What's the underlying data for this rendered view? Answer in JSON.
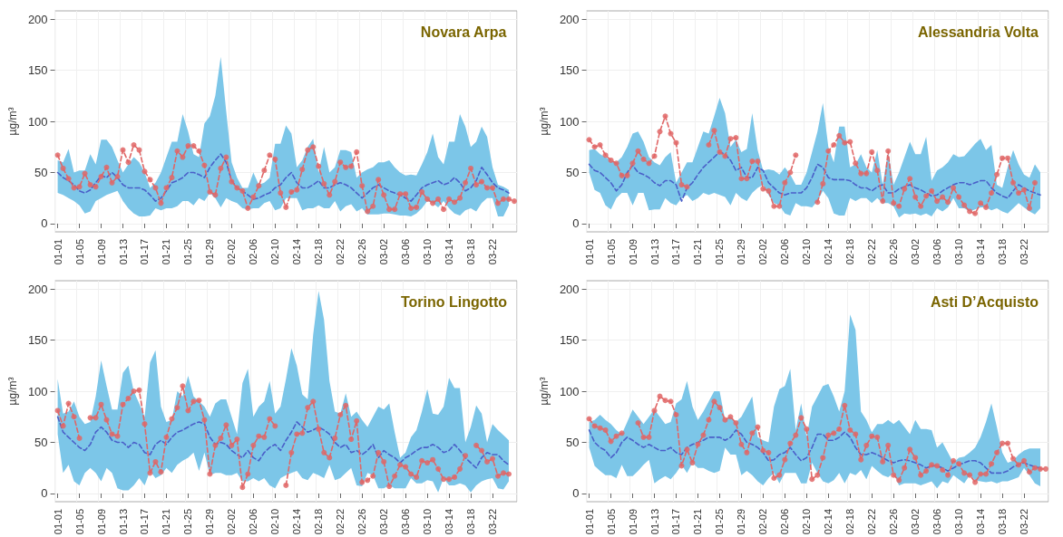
{
  "chart_data": [
    {
      "type": "line",
      "title": "Novara Arpa",
      "ylabel": "µg/m³",
      "ylim": [
        -8,
        208
      ],
      "yticks": [
        0,
        50,
        100,
        150,
        200
      ],
      "grid": true,
      "categories": [
        "01-01",
        null,
        null,
        null,
        "01-05",
        null,
        null,
        null,
        "01-09",
        null,
        null,
        null,
        "01-13",
        null,
        null,
        null,
        "01-17",
        null,
        null,
        null,
        "01-21",
        null,
        null,
        null,
        "01-25",
        null,
        null,
        null,
        "01-29",
        null,
        null,
        null,
        "02-02",
        null,
        null,
        null,
        "02-06",
        null,
        null,
        null,
        "02-10",
        null,
        null,
        null,
        "02-14",
        null,
        null,
        null,
        "02-18",
        null,
        null,
        null,
        "02-22",
        null,
        null,
        null,
        "02-26",
        null,
        null,
        null,
        "03-02",
        null,
        null,
        null,
        "03-06",
        null,
        null,
        null,
        "03-10",
        null,
        null,
        null,
        "03-14",
        null,
        null,
        null,
        "03-18",
        null,
        null,
        null,
        "03-22",
        null,
        null,
        null,
        null
      ],
      "series": [
        {
          "type": "line",
          "color": "#4a5fc8",
          "line_style": "dashed",
          "marker": "none",
          "values": [
            50,
            45,
            42,
            38,
            32,
            30,
            33,
            40,
            47,
            45,
            50,
            45,
            38,
            35,
            35,
            35,
            33,
            28,
            22,
            25,
            32,
            40,
            42,
            45,
            50,
            50,
            48,
            45,
            55,
            62,
            68,
            60,
            42,
            35,
            32,
            28,
            24,
            25,
            28,
            30,
            35,
            38,
            45,
            50,
            40,
            35,
            35,
            38,
            42,
            35,
            35,
            38,
            40,
            38,
            35,
            30,
            25,
            30,
            35,
            38,
            35,
            32,
            30,
            28,
            25,
            22,
            28,
            35,
            38,
            40,
            42,
            38,
            40,
            45,
            40,
            32,
            35,
            42,
            55,
            48,
            40,
            35,
            33,
            30,
            null
          ],
          "lower": [
            30,
            28,
            25,
            22,
            18,
            10,
            12,
            22,
            25,
            28,
            30,
            32,
            22,
            15,
            10,
            7,
            7,
            8,
            15,
            13,
            15,
            15,
            17,
            22,
            22,
            18,
            25,
            22,
            30,
            25,
            16,
            25,
            22,
            20,
            15,
            14,
            15,
            15,
            20,
            22,
            13,
            15,
            25,
            25,
            25,
            13,
            15,
            15,
            18,
            15,
            15,
            22,
            12,
            17,
            19,
            12,
            15,
            9,
            9,
            9,
            10,
            10,
            9,
            8,
            8,
            7,
            10,
            15,
            22,
            20,
            16,
            22,
            15,
            10,
            8,
            13,
            15,
            12,
            20,
            25,
            25,
            7,
            7,
            18,
            null
          ],
          "upper": [
            62,
            60,
            73,
            50,
            52,
            52,
            68,
            58,
            82,
            82,
            75,
            62,
            50,
            58,
            65,
            60,
            50,
            35,
            40,
            50,
            65,
            80,
            80,
            107,
            90,
            68,
            65,
            98,
            105,
            125,
            163,
            110,
            60,
            45,
            35,
            35,
            50,
            38,
            40,
            45,
            78,
            78,
            96,
            88,
            55,
            62,
            75,
            83,
            50,
            75,
            50,
            55,
            72,
            72,
            70,
            45,
            50,
            53,
            55,
            60,
            60,
            62,
            55,
            50,
            47,
            48,
            47,
            58,
            70,
            88,
            65,
            58,
            80,
            80,
            107,
            95,
            75,
            80,
            95,
            85,
            55,
            38,
            36,
            33,
            null
          ]
        },
        {
          "type": "line",
          "color": "#e06666",
          "line_style": "dashed",
          "marker": "circle",
          "values": [
            67,
            54,
            44,
            35,
            36,
            49,
            38,
            36,
            46,
            55,
            40,
            46,
            72,
            60,
            77,
            72,
            51,
            43,
            35,
            20,
            35,
            45,
            71,
            65,
            76,
            76,
            71,
            57,
            31,
            28,
            54,
            65,
            41,
            35,
            32,
            15,
            26,
            37,
            52,
            67,
            63,
            30,
            16,
            31,
            33,
            53,
            72,
            75,
            56,
            39,
            28,
            41,
            60,
            55,
            56,
            70,
            37,
            12,
            17,
            43,
            28,
            14,
            14,
            29,
            29,
            15,
            16,
            31,
            24,
            20,
            24,
            14,
            24,
            21,
            25,
            40,
            54,
            38,
            41,
            35,
            35,
            20,
            24,
            24,
            22
          ]
        }
      ]
    },
    {
      "type": "line",
      "title": "Alessandria Volta",
      "ylabel": "µg/m³",
      "ylim": [
        -8,
        208
      ],
      "yticks": [
        0,
        50,
        100,
        150,
        200
      ],
      "grid": true,
      "categories": [
        "01-01",
        null,
        null,
        null,
        "01-05",
        null,
        null,
        null,
        "01-09",
        null,
        null,
        null,
        "01-13",
        null,
        null,
        null,
        "01-17",
        null,
        null,
        null,
        "01-21",
        null,
        null,
        null,
        "01-25",
        null,
        null,
        null,
        "01-29",
        null,
        null,
        null,
        "02-02",
        null,
        null,
        null,
        "02-06",
        null,
        null,
        null,
        "02-10",
        null,
        null,
        null,
        "02-14",
        null,
        null,
        null,
        "02-18",
        null,
        null,
        null,
        "02-22",
        null,
        null,
        null,
        "02-26",
        null,
        null,
        null,
        "03-02",
        null,
        null,
        null,
        "03-06",
        null,
        null,
        null,
        "03-10",
        null,
        null,
        null,
        "03-14",
        null,
        null,
        null,
        "03-18",
        null,
        null,
        null,
        "03-22",
        null,
        null,
        null,
        null
      ],
      "series": [
        {
          "type": "line",
          "color": "#4a5fc8",
          "line_style": "dashed",
          "marker": "none",
          "values": [
            58,
            52,
            50,
            45,
            40,
            32,
            38,
            50,
            57,
            50,
            48,
            45,
            40,
            37,
            42,
            42,
            38,
            22,
            35,
            40,
            48,
            55,
            60,
            65,
            70,
            68,
            62,
            52,
            55,
            45,
            45,
            55,
            52,
            40,
            35,
            30,
            28,
            30,
            30,
            30,
            35,
            45,
            58,
            55,
            45,
            43,
            43,
            43,
            42,
            38,
            35,
            35,
            32,
            36,
            38,
            30,
            30,
            34,
            36,
            38,
            35,
            33,
            30,
            27,
            28,
            32,
            35,
            38,
            40,
            40,
            38,
            40,
            42,
            42,
            35,
            30,
            27,
            25,
            32,
            38,
            35,
            32,
            30,
            28,
            null
          ],
          "lower": [
            50,
            33,
            30,
            18,
            14,
            25,
            30,
            30,
            18,
            30,
            30,
            13,
            14,
            14,
            25,
            20,
            18,
            25,
            28,
            22,
            25,
            30,
            28,
            30,
            28,
            26,
            18,
            30,
            25,
            22,
            30,
            35,
            38,
            28,
            20,
            18,
            10,
            8,
            20,
            17,
            17,
            16,
            22,
            32,
            25,
            10,
            8,
            8,
            25,
            22,
            25,
            25,
            20,
            25,
            20,
            20,
            17,
            6,
            10,
            9,
            10,
            8,
            10,
            7,
            15,
            12,
            16,
            25,
            15,
            15,
            12,
            14,
            16,
            16,
            13,
            15,
            12,
            10,
            15,
            20,
            16,
            12,
            9,
            15,
            null
          ],
          "upper": [
            72,
            73,
            68,
            65,
            62,
            60,
            65,
            75,
            88,
            90,
            80,
            65,
            60,
            57,
            65,
            70,
            40,
            50,
            60,
            60,
            75,
            90,
            88,
            105,
            123,
            108,
            75,
            82,
            70,
            73,
            108,
            72,
            52,
            53,
            52,
            48,
            55,
            48,
            38,
            38,
            50,
            70,
            90,
            118,
            75,
            60,
            95,
            95,
            55,
            58,
            68,
            55,
            50,
            72,
            38,
            70,
            38,
            50,
            65,
            80,
            68,
            68,
            85,
            42,
            52,
            55,
            60,
            68,
            65,
            66,
            72,
            78,
            83,
            72,
            77,
            38,
            35,
            55,
            72,
            58,
            48,
            45,
            58,
            50,
            null
          ]
        },
        {
          "type": "line",
          "color": "#e06666",
          "line_style": "dashed",
          "marker": "circle",
          "values": [
            82,
            75,
            77,
            67,
            62,
            59,
            47,
            47,
            59,
            71,
            63,
            59,
            66,
            90,
            105,
            88,
            79,
            38,
            36,
            null,
            null,
            null,
            77,
            91,
            70,
            66,
            83,
            84,
            44,
            44,
            61,
            61,
            34,
            32,
            17,
            17,
            40,
            50,
            67,
            null,
            null,
            null,
            21,
            39,
            71,
            77,
            86,
            79,
            80,
            59,
            49,
            49,
            70,
            52,
            22,
            71,
            20,
            17,
            34,
            44,
            26,
            17,
            27,
            32,
            22,
            26,
            21,
            35,
            26,
            18,
            12,
            10,
            20,
            16,
            30,
            48,
            64,
            64,
            40,
            30,
            33,
            15,
            40,
            null,
            null
          ]
        }
      ]
    },
    {
      "type": "line",
      "title": "Torino Lingotto",
      "ylabel": "µg/m³",
      "ylim": [
        -8,
        208
      ],
      "yticks": [
        0,
        50,
        100,
        150,
        200
      ],
      "grid": true,
      "categories": [
        "01-01",
        null,
        null,
        null,
        "01-05",
        null,
        null,
        null,
        "01-09",
        null,
        null,
        null,
        "01-13",
        null,
        null,
        null,
        "01-17",
        null,
        null,
        null,
        "01-21",
        null,
        null,
        null,
        "01-25",
        null,
        null,
        null,
        "01-29",
        null,
        null,
        null,
        "02-02",
        null,
        null,
        null,
        "02-06",
        null,
        null,
        null,
        "02-10",
        null,
        null,
        null,
        "02-14",
        null,
        null,
        null,
        "02-18",
        null,
        null,
        null,
        "02-22",
        null,
        null,
        null,
        "02-26",
        null,
        null,
        null,
        "03-02",
        null,
        null,
        null,
        "03-06",
        null,
        null,
        null,
        "03-10",
        null,
        null,
        null,
        "03-14",
        null,
        null,
        null,
        "03-18",
        null,
        null,
        null,
        "03-22",
        null,
        null,
        null,
        null
      ],
      "series": [
        {
          "type": "line",
          "color": "#4a5fc8",
          "line_style": "dashed",
          "marker": "none",
          "values": [
            75,
            60,
            55,
            50,
            45,
            42,
            48,
            60,
            65,
            60,
            52,
            50,
            50,
            45,
            50,
            48,
            40,
            38,
            48,
            52,
            48,
            55,
            60,
            62,
            65,
            68,
            70,
            68,
            55,
            48,
            50,
            48,
            42,
            38,
            35,
            42,
            35,
            32,
            40,
            45,
            48,
            42,
            52,
            60,
            70,
            65,
            60,
            62,
            65,
            62,
            58,
            50,
            45,
            48,
            40,
            42,
            38,
            42,
            48,
            35,
            42,
            38,
            35,
            30,
            35,
            38,
            42,
            45,
            45,
            48,
            45,
            40,
            42,
            48,
            42,
            35,
            30,
            25,
            35,
            40,
            38,
            38,
            32,
            28,
            null
          ],
          "lower": [
            58,
            20,
            28,
            12,
            8,
            20,
            25,
            20,
            12,
            25,
            20,
            5,
            3,
            3,
            8,
            15,
            8,
            22,
            15,
            18,
            25,
            20,
            28,
            32,
            35,
            40,
            22,
            40,
            18,
            20,
            20,
            18,
            18,
            20,
            12,
            12,
            15,
            12,
            15,
            8,
            5,
            15,
            18,
            20,
            22,
            15,
            13,
            20,
            18,
            15,
            28,
            13,
            15,
            20,
            25,
            8,
            7,
            20,
            18,
            5,
            5,
            8,
            5,
            5,
            5,
            15,
            10,
            10,
            13,
            12,
            1,
            15,
            8,
            8,
            10,
            8,
            1,
            8,
            12,
            14,
            15,
            5,
            4,
            12,
            null
          ],
          "upper": [
            112,
            78,
            80,
            90,
            75,
            68,
            70,
            95,
            130,
            105,
            82,
            82,
            118,
            125,
            100,
            88,
            75,
            128,
            140,
            85,
            70,
            72,
            100,
            95,
            115,
            95,
            90,
            85,
            75,
            88,
            92,
            92,
            75,
            58,
            108,
            122,
            75,
            85,
            90,
            110,
            78,
            85,
            112,
            142,
            125,
            97,
            92,
            155,
            198,
            170,
            110,
            80,
            78,
            98,
            75,
            80,
            72,
            65,
            75,
            85,
            82,
            88,
            60,
            35,
            40,
            55,
            62,
            80,
            102,
            78,
            77,
            85,
            113,
            103,
            103,
            50,
            65,
            86,
            78,
            50,
            68,
            62,
            57,
            52,
            null
          ]
        },
        {
          "type": "line",
          "color": "#e06666",
          "line_style": "dashed",
          "marker": "circle",
          "values": [
            81,
            66,
            88,
            75,
            54,
            null,
            74,
            74,
            87,
            72,
            58,
            56,
            87,
            93,
            100,
            101,
            68,
            20,
            31,
            21,
            55,
            73,
            84,
            105,
            81,
            90,
            91,
            72,
            19,
            47,
            54,
            67,
            47,
            53,
            6,
            19,
            47,
            56,
            55,
            73,
            66,
            null,
            8,
            40,
            58,
            59,
            84,
            90,
            63,
            40,
            35,
            54,
            77,
            86,
            53,
            71,
            11,
            13,
            17,
            40,
            31,
            7,
            17,
            28,
            26,
            19,
            16,
            32,
            30,
            33,
            24,
            14,
            14,
            16,
            24,
            37,
            null,
            47,
            42,
            31,
            34,
            17,
            20,
            19,
            null
          ]
        }
      ]
    },
    {
      "type": "line",
      "title": "Asti D’Acquisto",
      "ylabel": "µg/m³",
      "ylim": [
        -8,
        208
      ],
      "yticks": [
        0,
        50,
        100,
        150,
        200
      ],
      "grid": true,
      "categories": [
        "01-01",
        null,
        null,
        null,
        "01-05",
        null,
        null,
        null,
        "01-09",
        null,
        null,
        null,
        "01-13",
        null,
        null,
        null,
        "01-17",
        null,
        null,
        null,
        "01-21",
        null,
        null,
        null,
        "01-25",
        null,
        null,
        null,
        "01-29",
        null,
        null,
        null,
        "02-02",
        null,
        null,
        null,
        "02-06",
        null,
        null,
        null,
        "02-10",
        null,
        null,
        null,
        "02-14",
        null,
        null,
        null,
        "02-18",
        null,
        null,
        null,
        "02-22",
        null,
        null,
        null,
        "02-26",
        null,
        null,
        null,
        "03-02",
        null,
        null,
        null,
        "03-06",
        null,
        null,
        null,
        "03-10",
        null,
        null,
        null,
        "03-14",
        null,
        null,
        null,
        "03-18",
        null,
        null,
        null,
        "03-22",
        null,
        null,
        null,
        null
      ],
      "series": [
        {
          "type": "line",
          "color": "#4a5fc8",
          "line_style": "dashed",
          "marker": "none",
          "values": [
            62,
            50,
            45,
            42,
            35,
            40,
            50,
            55,
            52,
            48,
            45,
            48,
            45,
            42,
            42,
            45,
            40,
            38,
            45,
            48,
            50,
            52,
            55,
            55,
            55,
            52,
            55,
            62,
            58,
            50,
            48,
            45,
            40,
            32,
            33,
            38,
            40,
            45,
            38,
            32,
            35,
            45,
            58,
            58,
            52,
            52,
            55,
            60,
            55,
            45,
            38,
            38,
            40,
            38,
            35,
            32,
            30,
            32,
            33,
            32,
            30,
            28,
            25,
            27,
            27,
            25,
            22,
            25,
            28,
            30,
            32,
            32,
            30,
            25,
            20,
            20,
            20,
            22,
            26,
            28,
            30,
            28,
            26,
            25,
            null
          ],
          "lower": [
            45,
            27,
            22,
            18,
            18,
            15,
            28,
            17,
            17,
            22,
            28,
            33,
            10,
            14,
            17,
            14,
            20,
            28,
            20,
            30,
            25,
            25,
            22,
            20,
            22,
            45,
            38,
            38,
            18,
            22,
            18,
            12,
            8,
            15,
            20,
            10,
            20,
            20,
            20,
            10,
            10,
            30,
            20,
            12,
            10,
            13,
            20,
            10,
            20,
            18,
            23,
            14,
            27,
            22,
            18,
            16,
            20,
            8,
            10,
            10,
            10,
            8,
            10,
            12,
            5,
            12,
            10,
            18,
            14,
            10,
            18,
            13,
            12,
            11,
            12,
            10,
            12,
            12,
            14,
            16,
            25,
            18,
            10,
            7,
            null
          ],
          "upper": [
            70,
            72,
            77,
            72,
            68,
            62,
            58,
            70,
            82,
            75,
            68,
            75,
            82,
            75,
            68,
            70,
            88,
            92,
            110,
            85,
            72,
            80,
            90,
            100,
            100,
            72,
            75,
            70,
            75,
            85,
            95,
            55,
            52,
            50,
            85,
            102,
            105,
            122,
            62,
            88,
            55,
            85,
            95,
            105,
            107,
            95,
            80,
            100,
            175,
            160,
            80,
            72,
            60,
            68,
            68,
            72,
            68,
            72,
            65,
            58,
            72,
            63,
            63,
            62,
            45,
            50,
            40,
            30,
            35,
            36,
            40,
            45,
            55,
            70,
            88,
            65,
            40,
            30,
            32,
            38,
            42,
            44,
            44,
            44,
            null
          ]
        },
        {
          "type": "line",
          "color": "#e06666",
          "line_style": "dashed",
          "marker": "circle",
          "values": [
            73,
            66,
            64,
            62,
            51,
            56,
            59,
            null,
            null,
            69,
            55,
            55,
            81,
            95,
            91,
            90,
            77,
            27,
            43,
            30,
            48,
            57,
            72,
            90,
            84,
            72,
            75,
            69,
            48,
            40,
            59,
            65,
            42,
            40,
            15,
            18,
            33,
            49,
            57,
            74,
            63,
            14,
            18,
            35,
            57,
            59,
            63,
            86,
            62,
            58,
            33,
            47,
            56,
            55,
            31,
            47,
            18,
            13,
            25,
            43,
            35,
            18,
            22,
            28,
            27,
            23,
            18,
            32,
            29,
            20,
            18,
            11,
            19,
            19,
            29,
            40,
            49,
            49,
            34,
            28,
            32,
            21,
            25,
            24,
            24
          ]
        }
      ]
    }
  ]
}
